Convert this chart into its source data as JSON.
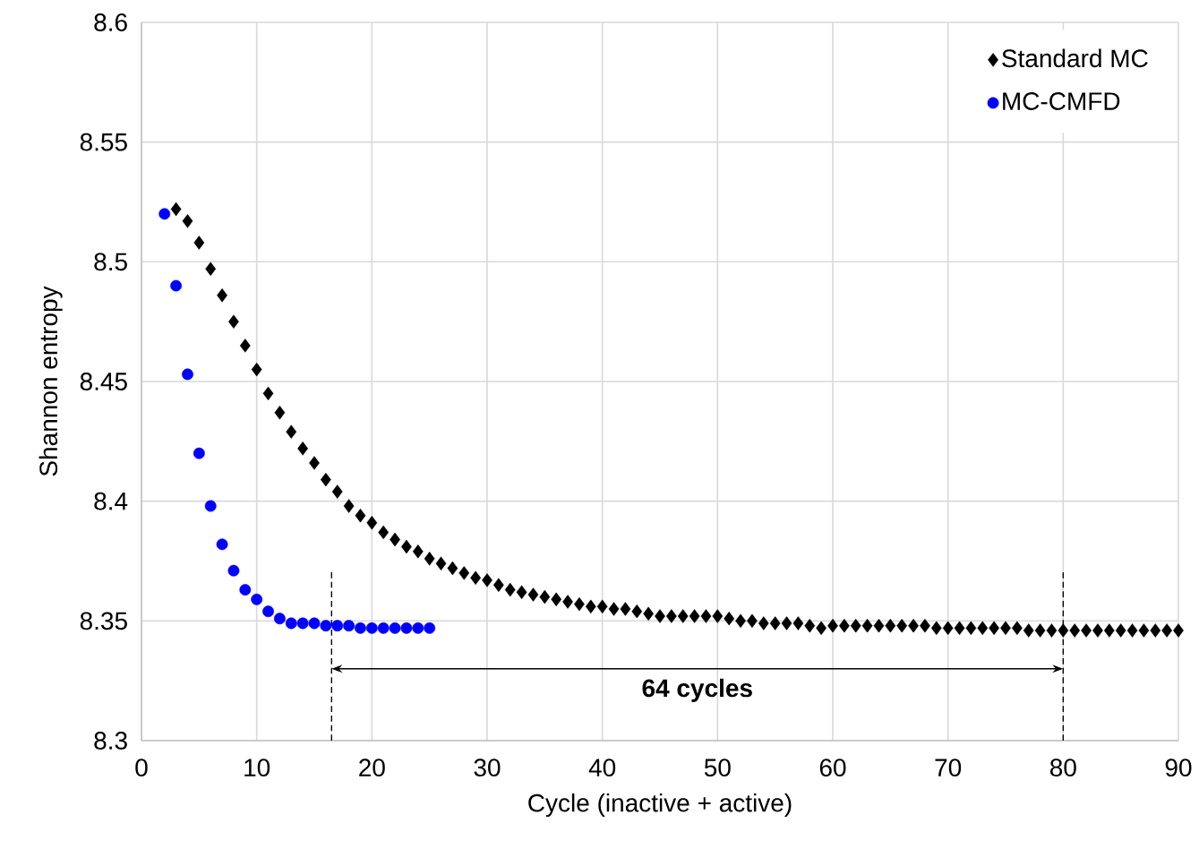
{
  "chart_data": {
    "type": "scatter",
    "xlabel": "Cycle (inactive + active)",
    "ylabel": "Shannon entropy",
    "xlim": [
      0,
      90
    ],
    "xticks": [
      0,
      10,
      20,
      30,
      40,
      50,
      60,
      70,
      80,
      90
    ],
    "ylim": [
      8.3,
      8.6
    ],
    "yticks": [
      8.3,
      8.35,
      8.4,
      8.45,
      8.5,
      8.55,
      8.6
    ],
    "grid": true,
    "legend": "top right",
    "series": [
      {
        "name": "Standard MC",
        "color": "#000000",
        "marker": "diamond",
        "x": [
          3,
          4,
          5,
          6,
          7,
          8,
          9,
          10,
          11,
          12,
          13,
          14,
          15,
          16,
          17,
          18,
          19,
          20,
          21,
          22,
          23,
          24,
          25,
          26,
          27,
          28,
          29,
          30,
          31,
          32,
          33,
          34,
          35,
          36,
          37,
          38,
          39,
          40,
          41,
          42,
          43,
          44,
          45,
          46,
          47,
          48,
          49,
          50,
          51,
          52,
          53,
          54,
          55,
          56,
          57,
          58,
          59,
          60,
          61,
          62,
          63,
          64,
          65,
          66,
          67,
          68,
          69,
          70,
          71,
          72,
          73,
          74,
          75,
          76,
          77,
          78,
          79,
          80,
          81,
          82,
          83,
          84,
          85,
          86,
          87,
          88,
          89,
          90
        ],
        "values": [
          8.522,
          8.517,
          8.508,
          8.497,
          8.486,
          8.475,
          8.465,
          8.455,
          8.445,
          8.437,
          8.429,
          8.422,
          8.416,
          8.409,
          8.404,
          8.398,
          8.394,
          8.391,
          8.387,
          8.384,
          8.381,
          8.379,
          8.376,
          8.374,
          8.372,
          8.37,
          8.368,
          8.367,
          8.365,
          8.363,
          8.362,
          8.361,
          8.36,
          8.359,
          8.358,
          8.357,
          8.356,
          8.356,
          8.355,
          8.355,
          8.354,
          8.353,
          8.352,
          8.352,
          8.352,
          8.352,
          8.352,
          8.352,
          8.351,
          8.35,
          8.35,
          8.349,
          8.349,
          8.349,
          8.349,
          8.348,
          8.347,
          8.348,
          8.348,
          8.348,
          8.348,
          8.348,
          8.348,
          8.348,
          8.348,
          8.348,
          8.347,
          8.347,
          8.347,
          8.347,
          8.347,
          8.347,
          8.347,
          8.347,
          8.346,
          8.346,
          8.346,
          8.346,
          8.346,
          8.346,
          8.346,
          8.346,
          8.346,
          8.346,
          8.346,
          8.346,
          8.346,
          8.346
        ]
      },
      {
        "name": "MC-CMFD",
        "color": "#0000ff",
        "marker": "circle",
        "x": [
          2,
          3,
          4,
          5,
          6,
          7,
          8,
          9,
          10,
          11,
          12,
          13,
          14,
          15,
          16,
          17,
          18,
          19,
          20,
          21,
          22,
          23,
          24,
          25
        ],
        "values": [
          8.52,
          8.49,
          8.453,
          8.42,
          8.398,
          8.382,
          8.371,
          8.363,
          8.359,
          8.354,
          8.351,
          8.349,
          8.349,
          8.349,
          8.348,
          8.348,
          8.348,
          8.347,
          8.347,
          8.347,
          8.347,
          8.347,
          8.347,
          8.347
        ]
      }
    ],
    "ref_lines": [
      {
        "axis": "x",
        "value": 16.5,
        "line_style": "dashed",
        "color": "#000000"
      },
      {
        "axis": "x",
        "value": 80,
        "line_style": "dashed",
        "color": "#000000"
      }
    ],
    "annotations": [
      "64 cycles"
    ]
  }
}
